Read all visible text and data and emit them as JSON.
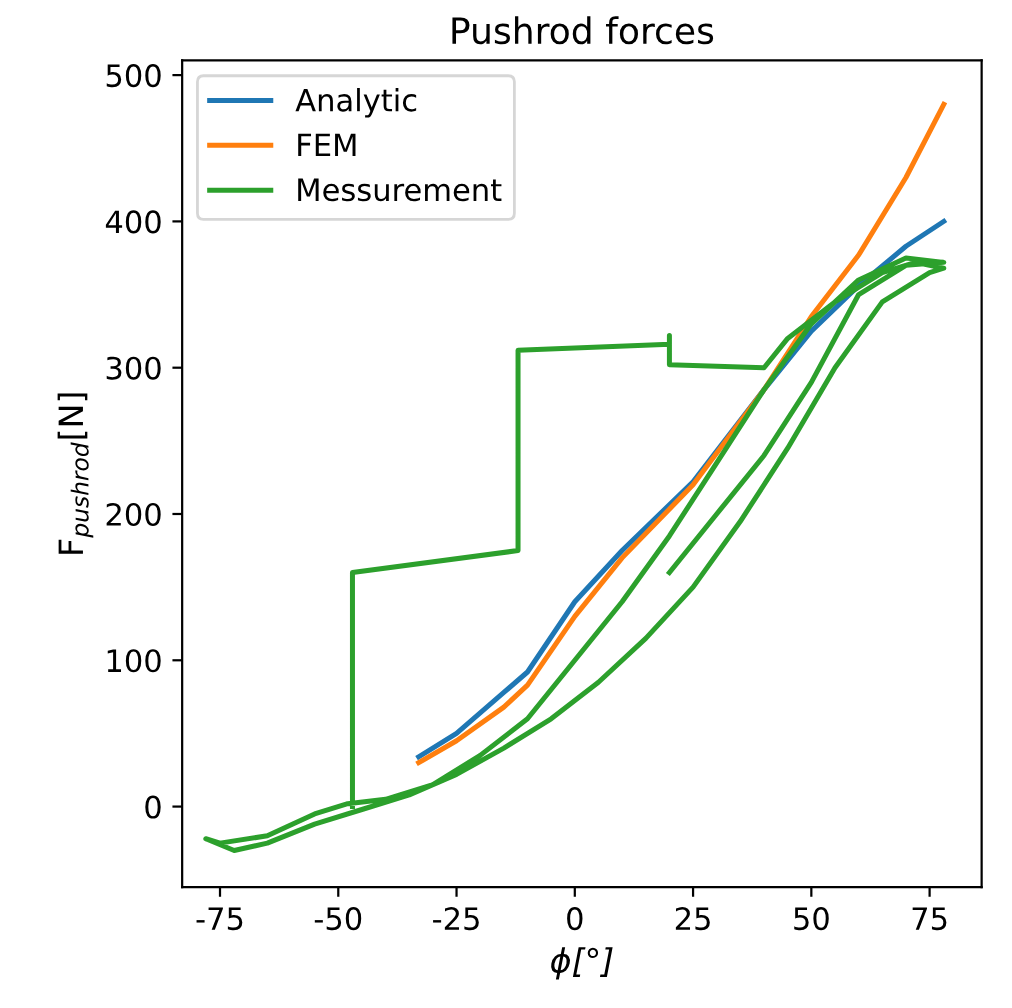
{
  "chart_data": {
    "type": "line",
    "title": "Pushrod forces",
    "xlabel": "ϕ[°]",
    "ylabel": "F$_{pushrod}$[N]",
    "xlim": [
      -83,
      86
    ],
    "ylim": [
      -55,
      510
    ],
    "xticks": [
      -75,
      -50,
      -25,
      0,
      25,
      50,
      75
    ],
    "yticks": [
      0,
      100,
      200,
      300,
      400,
      500
    ],
    "grid": false,
    "legend": "top left",
    "line_style": "solid",
    "marker": "none",
    "series": [
      {
        "name": "Analytic",
        "color": "#1f77b4",
        "x": [
          -33,
          -25,
          -15,
          -10,
          0,
          10,
          25,
          40,
          50,
          60,
          70,
          78
        ],
        "values": [
          34,
          50,
          78,
          92,
          140,
          175,
          222,
          285,
          325,
          356,
          383,
          400
        ]
      },
      {
        "name": "FEM",
        "color": "#ff7f0e",
        "x": [
          -33,
          -25,
          -15,
          -10,
          0,
          10,
          25,
          40,
          50,
          60,
          70,
          78
        ],
        "values": [
          30,
          45,
          68,
          83,
          130,
          170,
          220,
          285,
          335,
          377,
          430,
          480
        ]
      },
      {
        "name": "Messurement",
        "color": "#2ca02c",
        "x": [
          -47,
          -47,
          -12,
          -12,
          20,
          20,
          20,
          40,
          45,
          55,
          65,
          72,
          78,
          75,
          65,
          55,
          45,
          35,
          25,
          15,
          5,
          -5,
          -15,
          -25,
          -35,
          -45,
          -55,
          -65,
          -72,
          -78,
          -75,
          -65,
          -55,
          -48,
          -40,
          -30,
          -20,
          -10,
          0,
          10,
          20,
          30,
          40,
          50,
          60,
          70,
          78,
          70,
          60,
          50,
          40,
          30,
          20
        ],
        "values": [
          0,
          160,
          175,
          312,
          316,
          322,
          302,
          300,
          320,
          345,
          365,
          372,
          368,
          365,
          345,
          300,
          245,
          195,
          150,
          115,
          85,
          60,
          40,
          22,
          8,
          -2,
          -12,
          -25,
          -30,
          -22,
          -25,
          -20,
          -5,
          2,
          5,
          15,
          35,
          60,
          100,
          140,
          185,
          235,
          285,
          330,
          360,
          375,
          372,
          370,
          350,
          290,
          240,
          200,
          160
        ]
      }
    ]
  }
}
